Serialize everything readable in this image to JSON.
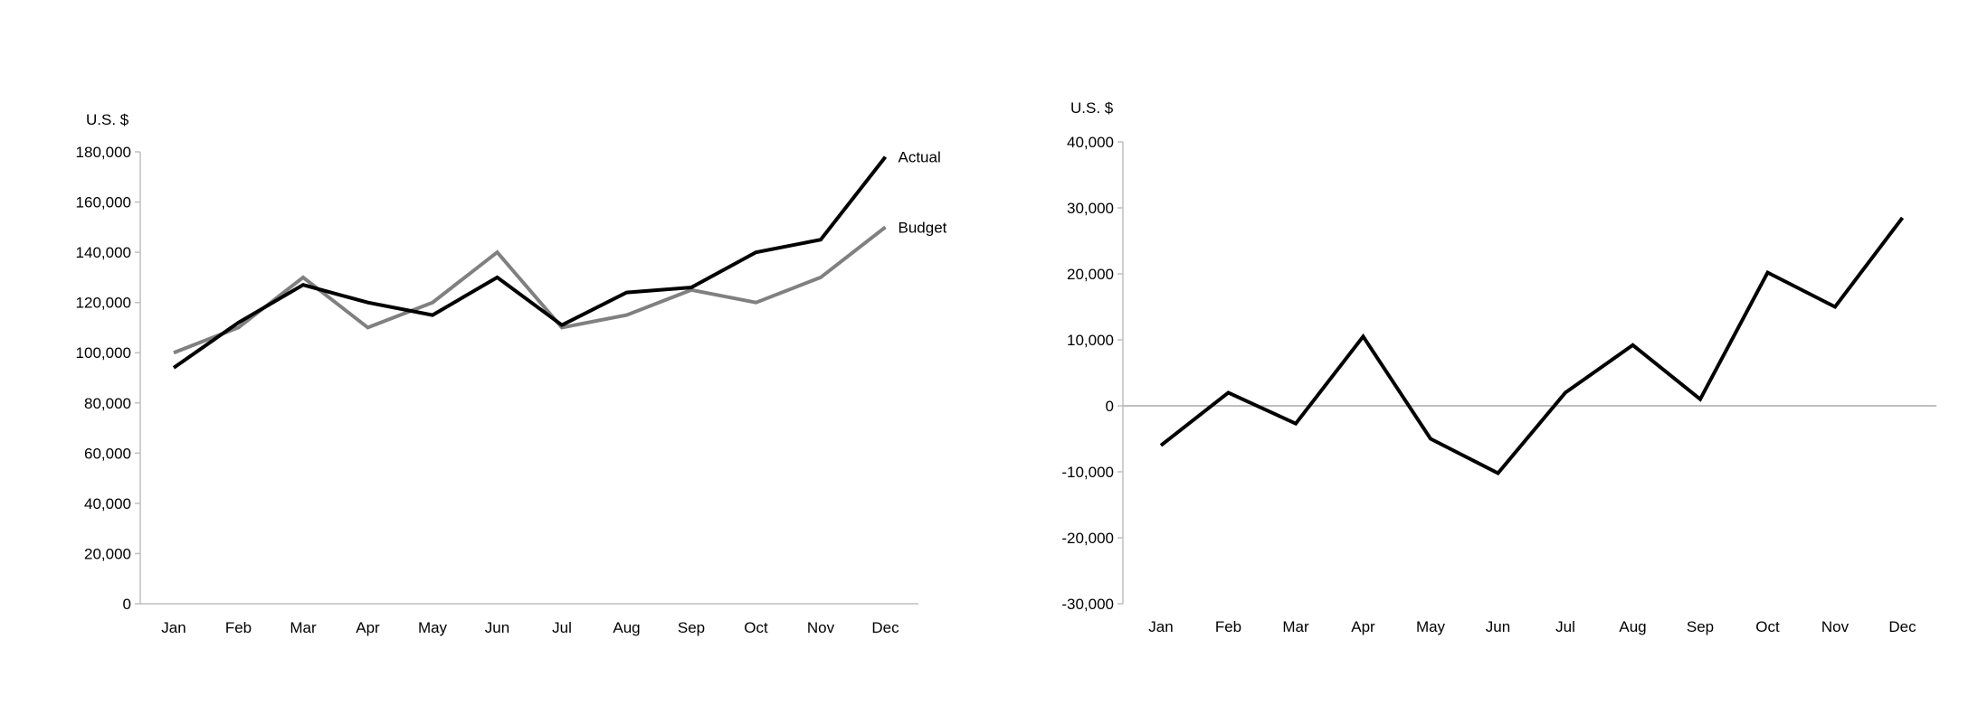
{
  "chart_data": [
    {
      "type": "line",
      "ylabel": "U.S. $",
      "categories": [
        "Jan",
        "Feb",
        "Mar",
        "Apr",
        "May",
        "Jun",
        "Jul",
        "Aug",
        "Sep",
        "Oct",
        "Nov",
        "Dec"
      ],
      "ylim": [
        0,
        180000
      ],
      "yticks": [
        "0",
        "20,000",
        "40,000",
        "60,000",
        "80,000",
        "100,000",
        "120,000",
        "140,000",
        "160,000",
        "180,000"
      ],
      "grid": false,
      "series": [
        {
          "name": "Actual",
          "color": "#000000",
          "values": [
            94000,
            112000,
            127000,
            120000,
            115000,
            130000,
            111000,
            124000,
            126000,
            140000,
            145000,
            178000
          ]
        },
        {
          "name": "Budget",
          "color": "#808080",
          "values": [
            100000,
            110000,
            130000,
            110000,
            120000,
            140000,
            110000,
            115000,
            125000,
            120000,
            130000,
            150000
          ]
        }
      ],
      "legend": "direct labels at line ends"
    },
    {
      "type": "line",
      "ylabel": "U.S. $",
      "categories": [
        "Jan",
        "Feb",
        "Mar",
        "Apr",
        "May",
        "Jun",
        "Jul",
        "Aug",
        "Sep",
        "Oct",
        "Nov",
        "Dec"
      ],
      "ylim": [
        -30000,
        40000
      ],
      "yticks": [
        "-30,000",
        "-20,000",
        "-10,000",
        "0",
        "10,000",
        "20,000",
        "30,000",
        "40,000"
      ],
      "grid": false,
      "zero_line": true,
      "series": [
        {
          "color": "#000000",
          "values": [
            -6000,
            2000,
            -2700,
            10500,
            -5000,
            -10200,
            2000,
            9200,
            1000,
            20200,
            15000,
            28500
          ]
        }
      ]
    }
  ]
}
